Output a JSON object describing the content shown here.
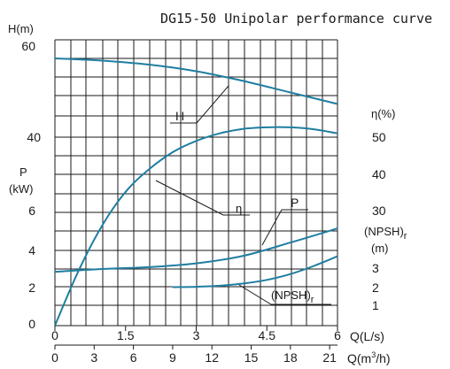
{
  "chart_data": {
    "type": "line",
    "title": "DG15-50 Unipolar performance curve",
    "x_axis_primary": {
      "label": "Q(L/s)",
      "range": [
        0,
        6
      ],
      "ticks": [
        {
          "value": 0,
          "label": "0"
        },
        {
          "value": 1.5,
          "label": "1.5"
        },
        {
          "value": 3,
          "label": "3"
        },
        {
          "value": 4.5,
          "label": "4.5"
        },
        {
          "value": 6,
          "label": "6"
        }
      ]
    },
    "x_axis_secondary": {
      "label_prefix": "Q(m",
      "label_sup": "3",
      "label_suffix": "/h)",
      "range": [
        0,
        21.6
      ],
      "ticks": [
        "0",
        "3",
        "6",
        "9",
        "12",
        "15",
        "18",
        "21"
      ],
      "tick_values": [
        0,
        3,
        6,
        9,
        12,
        15,
        18,
        21
      ]
    },
    "y_left_upper": {
      "label": "H(m)",
      "ticks": [
        {
          "value": 40,
          "label": "40"
        },
        {
          "value": 60,
          "label": "60"
        }
      ]
    },
    "y_left_lower": {
      "label_line1": "P",
      "label_line2": "(kW)",
      "ticks": [
        {
          "value": 0,
          "label": "0"
        },
        {
          "value": 2,
          "label": "2"
        },
        {
          "value": 4,
          "label": "4"
        },
        {
          "value": 6,
          "label": "6"
        }
      ]
    },
    "y_right_upper": {
      "label": "η(%)",
      "ticks": [
        {
          "value": 30,
          "label": "30"
        },
        {
          "value": 40,
          "label": "40"
        },
        {
          "value": 50,
          "label": "50"
        }
      ]
    },
    "y_right_lower": {
      "label_line1": "(NPSH)",
      "label_line1_sub": "r",
      "label_line2": "(m)",
      "ticks": [
        {
          "value": 1,
          "label": "1"
        },
        {
          "value": 2,
          "label": "2"
        },
        {
          "value": 3,
          "label": "3"
        }
      ]
    },
    "grid": true,
    "line_color": "#1f7ea1",
    "series": [
      {
        "name": "H",
        "x_unit": "L/s",
        "y_unit": "m",
        "x": [
          0,
          1,
          2,
          3,
          4,
          5,
          6
        ],
        "y": [
          57.8,
          57.3,
          56.4,
          54.9,
          52.7,
          50.1,
          47.5
        ]
      },
      {
        "name": "η",
        "x_unit": "L/s",
        "y_unit": "%",
        "x": [
          0,
          0.5,
          1,
          1.5,
          2,
          2.5,
          3,
          3.5,
          4,
          4.5,
          5,
          5.5,
          6
        ],
        "y": [
          0,
          14.5,
          26.5,
          35.5,
          41.5,
          46,
          49,
          51,
          52.2,
          52.6,
          52.6,
          52.1,
          51
        ]
      },
      {
        "name": "P",
        "x_unit": "L/s",
        "y_unit": "kW",
        "x": [
          0,
          1,
          2,
          3,
          4,
          5,
          6
        ],
        "y": [
          2.85,
          3.0,
          3.1,
          3.3,
          3.7,
          4.4,
          5.15
        ]
      },
      {
        "name": "(NPSH)r",
        "x_unit": "L/s",
        "y_unit": "m",
        "x": [
          2.5,
          3,
          3.5,
          4,
          4.5,
          5,
          5.5,
          6
        ],
        "y": [
          2.0,
          2.02,
          2.08,
          2.2,
          2.4,
          2.72,
          3.17,
          3.7
        ]
      }
    ],
    "annotations": [
      {
        "text": "H",
        "target": "H"
      },
      {
        "text": "η",
        "target": "η"
      },
      {
        "text": "P",
        "target": "P"
      },
      {
        "text": "(NPSH)",
        "sub": "r",
        "target": "(NPSH)r"
      }
    ]
  }
}
